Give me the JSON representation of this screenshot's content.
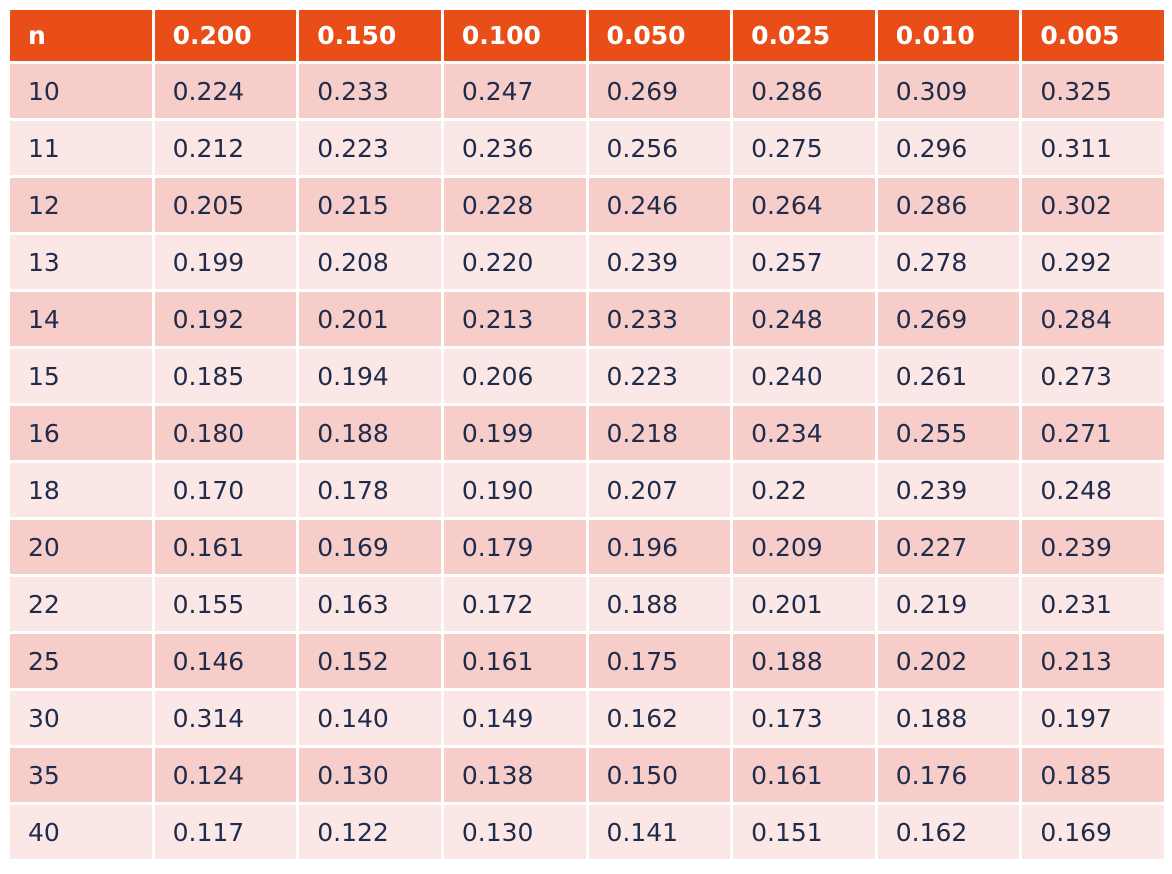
{
  "table": {
    "headers": [
      "n",
      "0.200",
      "0.150",
      "0.100",
      "0.050",
      "0.025",
      "0.010",
      "0.005"
    ],
    "rows": [
      [
        "10",
        "0.224",
        "0.233",
        "0.247",
        "0.269",
        "0.286",
        "0.309",
        "0.325"
      ],
      [
        "11",
        "0.212",
        "0.223",
        "0.236",
        "0.256",
        "0.275",
        "0.296",
        "0.311"
      ],
      [
        "12",
        "0.205",
        "0.215",
        "0.228",
        "0.246",
        "0.264",
        "0.286",
        "0.302"
      ],
      [
        "13",
        "0.199",
        "0.208",
        "0.220",
        "0.239",
        "0.257",
        "0.278",
        "0.292"
      ],
      [
        "14",
        "0.192",
        "0.201",
        "0.213",
        "0.233",
        "0.248",
        "0.269",
        "0.284"
      ],
      [
        "15",
        "0.185",
        "0.194",
        "0.206",
        "0.223",
        "0.240",
        "0.261",
        "0.273"
      ],
      [
        "16",
        "0.180",
        "0.188",
        "0.199",
        "0.218",
        "0.234",
        "0.255",
        "0.271"
      ],
      [
        "18",
        "0.170",
        "0.178",
        "0.190",
        "0.207",
        "0.22",
        "0.239",
        "0.248"
      ],
      [
        "20",
        "0.161",
        "0.169",
        "0.179",
        "0.196",
        "0.209",
        "0.227",
        "0.239"
      ],
      [
        "22",
        "0.155",
        "0.163",
        "0.172",
        "0.188",
        "0.201",
        "0.219",
        "0.231"
      ],
      [
        "25",
        "0.146",
        "0.152",
        "0.161",
        "0.175",
        "0.188",
        "0.202",
        "0.213"
      ],
      [
        "30",
        "0.314",
        "0.140",
        "0.149",
        "0.162",
        "0.173",
        "0.188",
        "0.197"
      ],
      [
        "35",
        "0.124",
        "0.130",
        "0.138",
        "0.150",
        "0.161",
        "0.176",
        "0.185"
      ],
      [
        "40",
        "0.117",
        "0.122",
        "0.130",
        "0.141",
        "0.151",
        "0.162",
        "0.169"
      ]
    ]
  },
  "colors": {
    "header_bg": "#e94e18",
    "header_text": "#ffffff",
    "row_odd_bg": "#f6cdc9",
    "row_even_bg": "#fbe7e6",
    "cell_text": "#1f2b4a"
  }
}
